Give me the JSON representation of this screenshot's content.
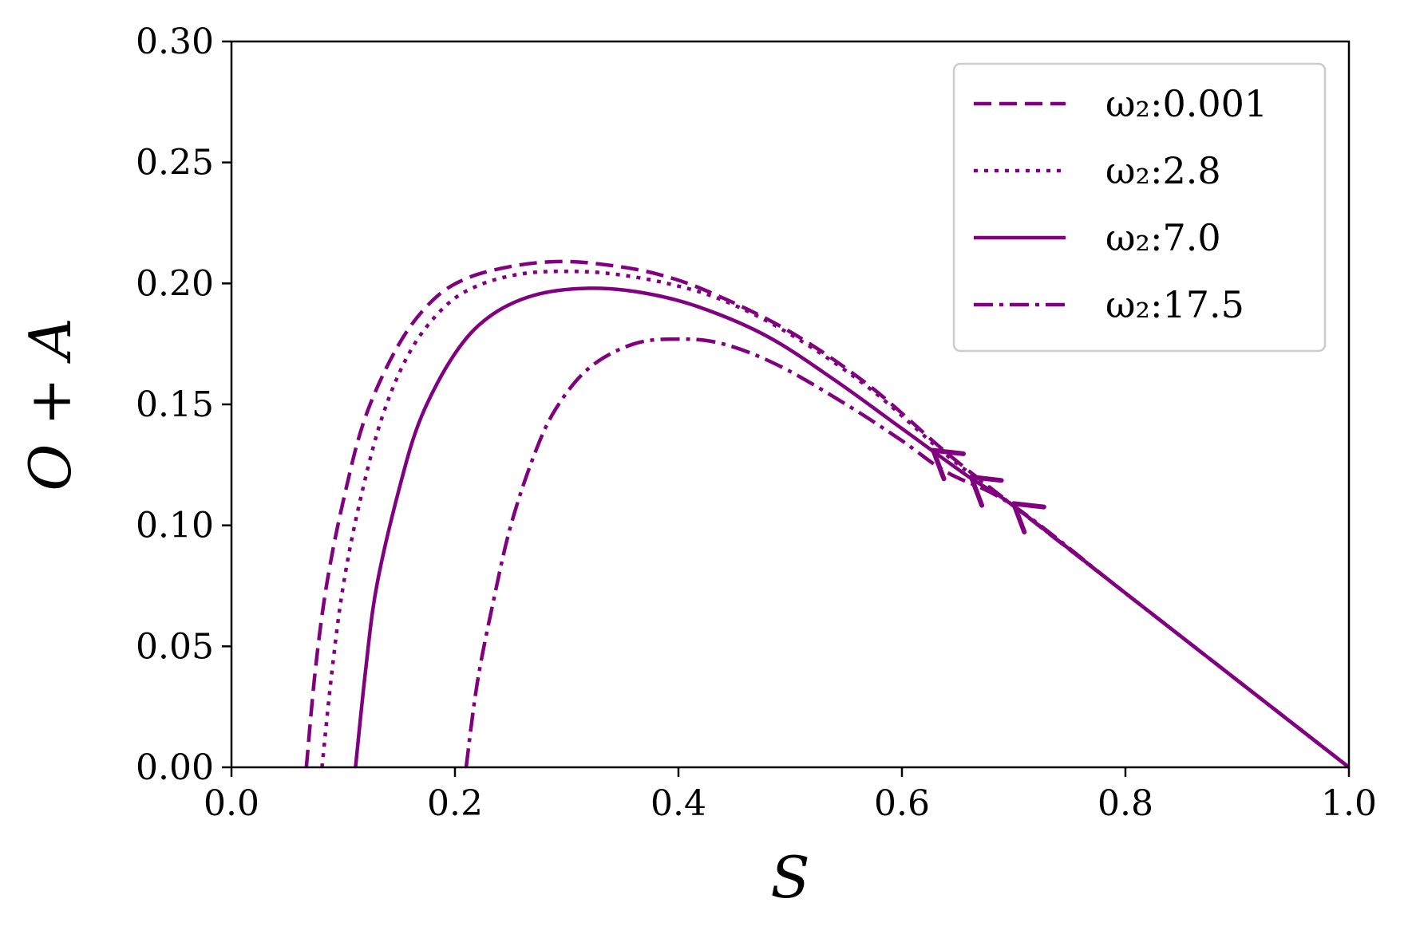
{
  "chart_data": {
    "type": "line",
    "xlabel": "S",
    "ylabel": "O + A",
    "xlim": [
      0.0,
      1.0
    ],
    "ylim": [
      0.0,
      0.3
    ],
    "xticks": [
      "0.0",
      "0.2",
      "0.4",
      "0.6",
      "0.8",
      "1.0"
    ],
    "yticks": [
      "0.00",
      "0.05",
      "0.10",
      "0.15",
      "0.20",
      "0.25",
      "0.30"
    ],
    "grid": false,
    "legend_position": "top-right",
    "color": "#800080",
    "series": [
      {
        "name": "ω₂:0.001",
        "linestyle": "dashed",
        "x": [
          0.067,
          0.075,
          0.085,
          0.1,
          0.12,
          0.15,
          0.18,
          0.21,
          0.25,
          0.29,
          0.33,
          0.38,
          0.43,
          0.5,
          0.57,
          0.64,
          0.7,
          0.8,
          0.9,
          1.0
        ],
        "y": [
          0.0,
          0.04,
          0.075,
          0.11,
          0.145,
          0.175,
          0.193,
          0.202,
          0.207,
          0.209,
          0.208,
          0.204,
          0.196,
          0.18,
          0.158,
          0.13,
          0.108,
          0.072,
          0.036,
          0.0
        ]
      },
      {
        "name": "ω₂:2.8",
        "linestyle": "dotted",
        "x": [
          0.081,
          0.09,
          0.1,
          0.115,
          0.135,
          0.16,
          0.19,
          0.22,
          0.26,
          0.3,
          0.34,
          0.39,
          0.44,
          0.5,
          0.57,
          0.64,
          0.7,
          0.8,
          0.9,
          1.0
        ],
        "y": [
          0.0,
          0.04,
          0.075,
          0.11,
          0.145,
          0.172,
          0.19,
          0.199,
          0.204,
          0.205,
          0.204,
          0.2,
          0.193,
          0.179,
          0.157,
          0.129,
          0.108,
          0.072,
          0.036,
          0.0
        ]
      },
      {
        "name": "ω₂:7.0",
        "linestyle": "solid",
        "x": [
          0.111,
          0.12,
          0.13,
          0.15,
          0.17,
          0.2,
          0.23,
          0.27,
          0.32,
          0.37,
          0.42,
          0.48,
          0.54,
          0.6,
          0.66,
          0.7,
          0.8,
          0.9,
          1.0
        ],
        "y": [
          0.0,
          0.04,
          0.075,
          0.115,
          0.145,
          0.171,
          0.186,
          0.195,
          0.198,
          0.196,
          0.19,
          0.178,
          0.16,
          0.14,
          0.12,
          0.108,
          0.072,
          0.036,
          0.0
        ],
        "arrows_at_x": [
          0.66
        ]
      },
      {
        "name": "ω₂:17.5",
        "linestyle": "dashdot",
        "x": [
          0.21,
          0.22,
          0.235,
          0.25,
          0.27,
          0.29,
          0.32,
          0.36,
          0.4,
          0.44,
          0.49,
          0.55,
          0.6,
          0.64,
          0.7,
          0.8,
          0.9,
          1.0
        ],
        "y": [
          0.0,
          0.035,
          0.07,
          0.1,
          0.128,
          0.148,
          0.165,
          0.175,
          0.177,
          0.175,
          0.166,
          0.15,
          0.135,
          0.122,
          0.108,
          0.072,
          0.036,
          0.0
        ],
        "arrows_at_x": [
          0.7
        ]
      }
    ],
    "arrows": [
      {
        "x": 0.628,
        "y": 0.131
      },
      {
        "x": 0.662,
        "y": 0.12
      },
      {
        "x": 0.7,
        "y": 0.109
      }
    ]
  }
}
